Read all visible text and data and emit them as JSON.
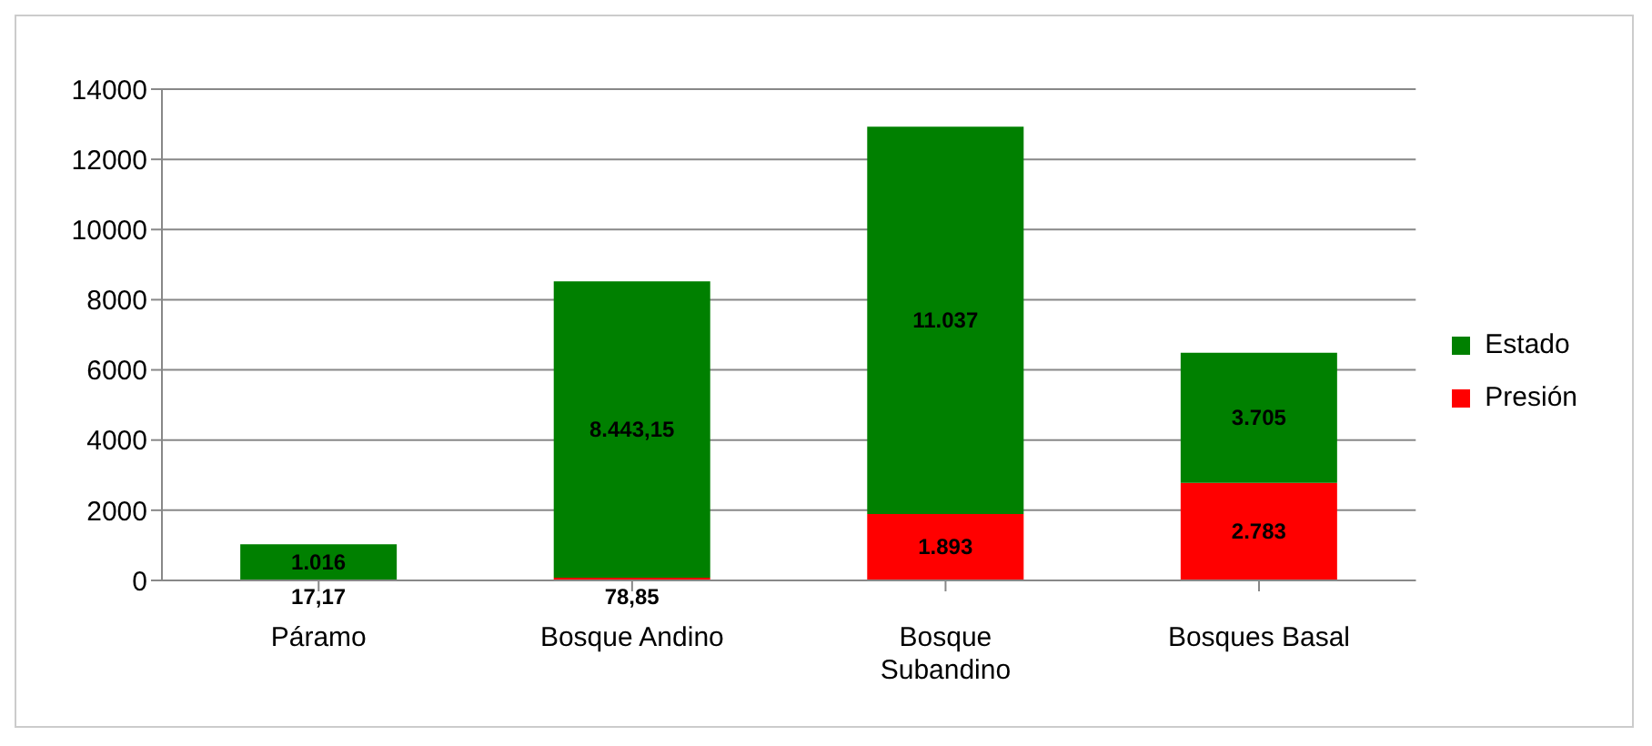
{
  "chart_data": {
    "type": "bar",
    "stacked": true,
    "categories": [
      "Páramo",
      "Bosque Andino",
      "Bosque Subandino",
      "Bosques Basal"
    ],
    "series": [
      {
        "name": "Presión",
        "color": "#ff0000",
        "values": [
          17.17,
          78.85,
          1893,
          2783
        ],
        "value_labels": [
          "17,17",
          "78,85",
          "1.893",
          "2.783"
        ]
      },
      {
        "name": "Estado",
        "color": "#008000",
        "values": [
          1016,
          8443.15,
          11037,
          3705
        ],
        "value_labels": [
          "1.016",
          "8.443,15",
          "11.037",
          "3.705"
        ]
      }
    ],
    "ylim": [
      0,
      14000
    ],
    "yticks": [
      0,
      2000,
      4000,
      6000,
      8000,
      10000,
      12000,
      14000
    ],
    "grid": "y",
    "legend": "right"
  }
}
